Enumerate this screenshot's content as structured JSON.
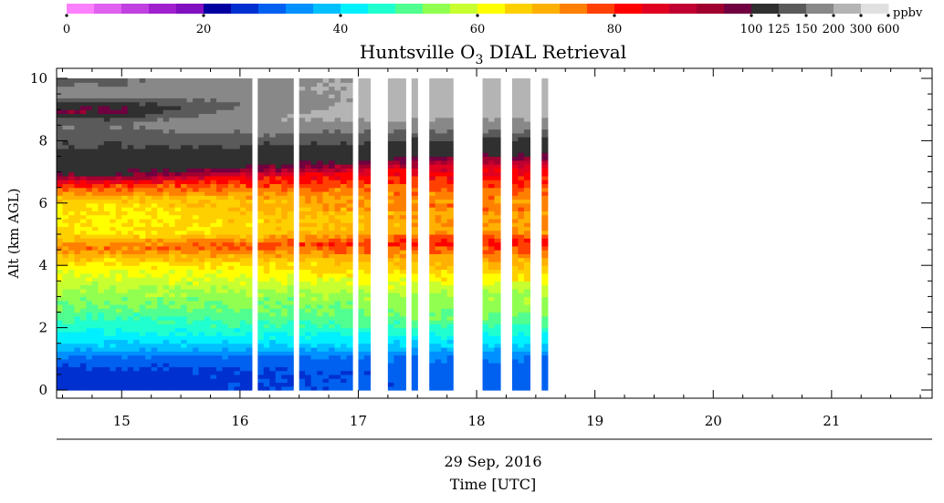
{
  "chart_data": {
    "type": "heatmap",
    "title": "Huntsville O3 DIAL Retrieval",
    "title_parts": {
      "prefix": "Huntsville O",
      "subscript": "3",
      "suffix": " DIAL Retrieval"
    },
    "ylabel": "Alt (km AGL)",
    "date_label": "29 Sep, 2016",
    "xlabel": "Time [UTC]",
    "xlim": [
      14.45,
      21.85
    ],
    "ylim": [
      0,
      10
    ],
    "x_ticks": [
      15,
      16,
      17,
      18,
      19,
      20,
      21
    ],
    "y_ticks": [
      0,
      2,
      4,
      6,
      8,
      10
    ],
    "colorbar": {
      "unit": "ppbv",
      "tick_labels": [
        "0",
        "20",
        "40",
        "60",
        "80",
        "100",
        "125",
        "150",
        "200",
        "300",
        "600"
      ],
      "boundaries": [
        0,
        4,
        8,
        12,
        16,
        20,
        24,
        28,
        32,
        36,
        40,
        44,
        48,
        52,
        56,
        60,
        64,
        68,
        72,
        76,
        80,
        84,
        88,
        92,
        96,
        100,
        125,
        150,
        200,
        300,
        600
      ],
      "colors": [
        "#ff80ff",
        "#e060f0",
        "#c040e0",
        "#a020d0",
        "#8010c0",
        "#0000a0",
        "#0030d0",
        "#0060f0",
        "#0090ff",
        "#00c0ff",
        "#00f0ff",
        "#20ffd0",
        "#50ff90",
        "#90ff50",
        "#c8ff30",
        "#ffff00",
        "#ffd000",
        "#ffb000",
        "#ff8000",
        "#ff4000",
        "#ff0000",
        "#e00020",
        "#c00030",
        "#a00030",
        "#700040",
        "#303030",
        "#5a5a5a",
        "#888888",
        "#b4b4b4",
        "#e0e0e0"
      ]
    },
    "data_gaps": [
      [
        16.12,
        16.17
      ],
      [
        16.43,
        16.48
      ],
      [
        16.96,
        17.01
      ],
      [
        17.12,
        17.27
      ],
      [
        17.33,
        17.37
      ],
      [
        17.42,
        17.46
      ],
      [
        17.52,
        17.62
      ],
      [
        17.68,
        17.72
      ],
      [
        17.78,
        18.03
      ],
      [
        18.22,
        18.32
      ],
      [
        18.43,
        18.55
      ],
      [
        18.62,
        21.85
      ]
    ],
    "profile_note_ppbv_by_altitude": {
      "altitude_km": [
        0.0,
        0.5,
        1.0,
        1.3,
        1.6,
        2.0,
        2.5,
        3.0,
        3.5,
        4.0,
        4.6,
        5.0,
        5.5,
        6.0,
        6.6,
        7.0,
        7.5,
        8.0,
        8.5,
        9.0,
        9.5,
        10.0
      ],
      "ozone_15UTC": [
        26,
        26,
        30,
        37,
        41,
        45,
        50,
        54,
        58,
        62,
        75,
        64,
        63,
        65,
        80,
        103,
        112,
        132,
        150,
        90,
        170,
        140
      ],
      "ozone_18UTC": [
        30,
        30,
        33,
        40,
        44,
        50,
        54,
        56,
        64,
        70,
        82,
        70,
        72,
        78,
        86,
        100,
        120,
        170,
        260,
        260,
        230,
        220
      ]
    }
  }
}
